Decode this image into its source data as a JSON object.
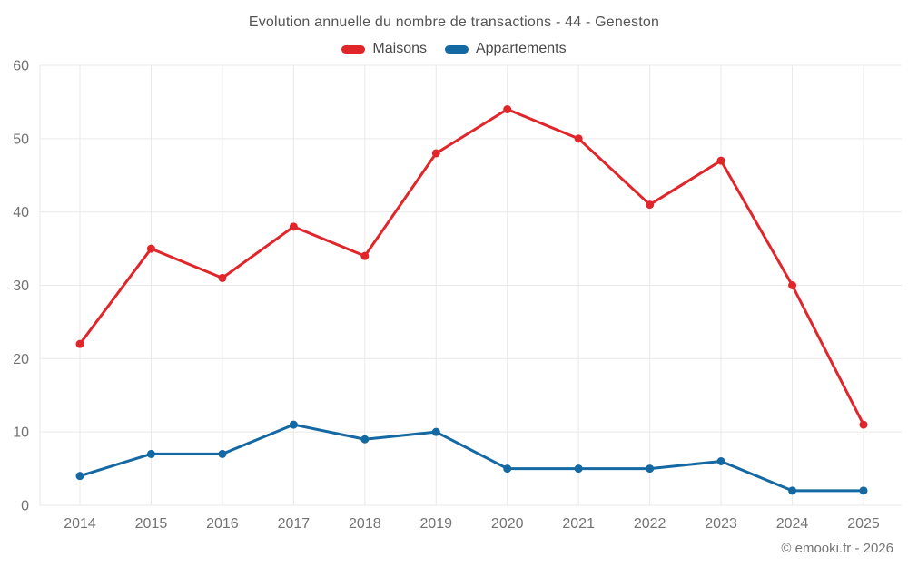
{
  "title": "Evolution annuelle du nombre de transactions - 44 - Geneston",
  "footer_credit": "© emooki.fr - 2026",
  "colors": {
    "maisons": "#e0262b",
    "appartements": "#1569a3",
    "grid": "#e9e9e9",
    "title_text": "#545454",
    "legend_text": "#4a4a4a",
    "tick_text": "#737373",
    "footer_text": "#757575",
    "background": "#ffffff"
  },
  "chart_data": {
    "type": "line",
    "title": "Evolution annuelle du nombre de transactions - 44 - Geneston",
    "categories": [
      "2014",
      "2015",
      "2016",
      "2017",
      "2018",
      "2019",
      "2020",
      "2021",
      "2022",
      "2023",
      "2024",
      "2025"
    ],
    "series": [
      {
        "name": "Maisons",
        "color": "#e0262b",
        "values": [
          22,
          35,
          31,
          38,
          34,
          48,
          54,
          50,
          41,
          47,
          30,
          11
        ]
      },
      {
        "name": "Appartements",
        "color": "#1569a3",
        "values": [
          4,
          7,
          7,
          11,
          9,
          10,
          5,
          5,
          5,
          6,
          2,
          2
        ]
      }
    ],
    "xlabel": "",
    "ylabel": "",
    "ylim": [
      0,
      60
    ],
    "yticks": [
      0,
      10,
      20,
      30,
      40,
      50,
      60
    ],
    "grid": true,
    "legend_position": "top"
  }
}
